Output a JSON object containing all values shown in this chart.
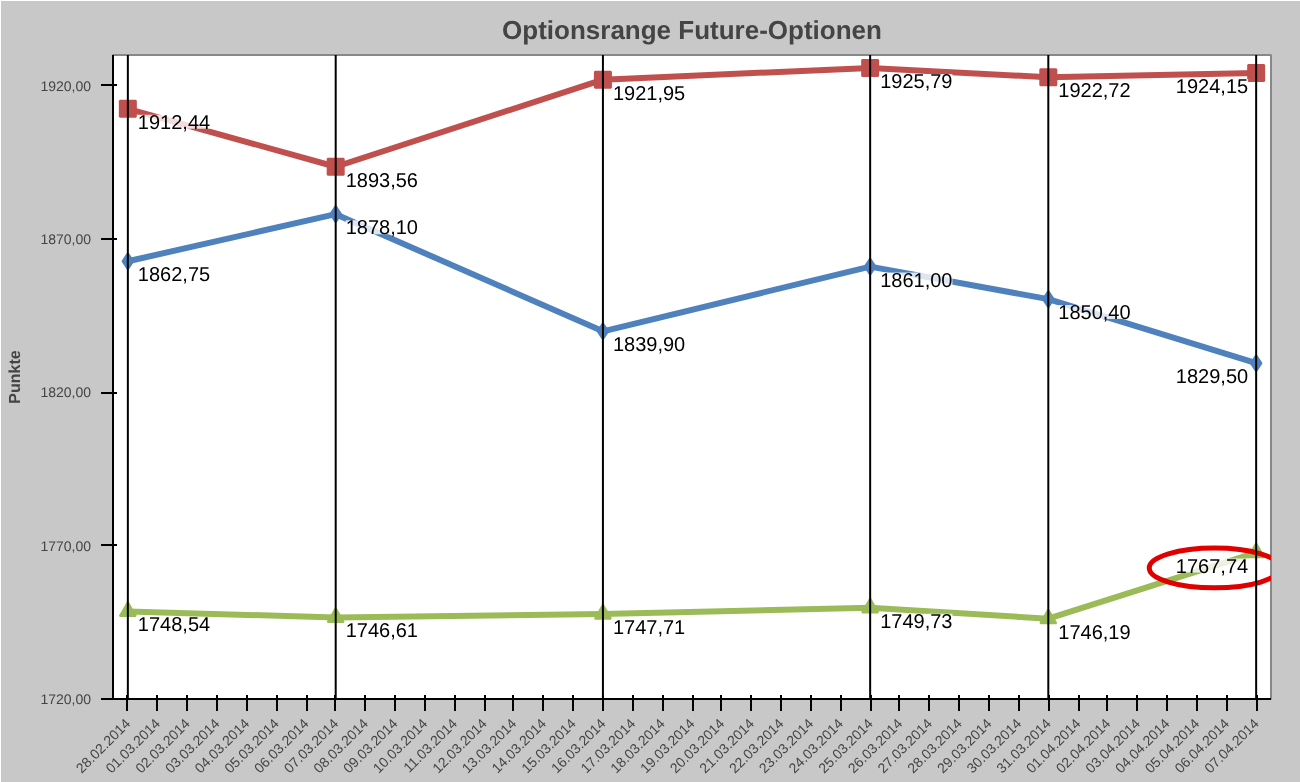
{
  "chart_data": {
    "type": "line",
    "title": "Optionsrange Future-Optionen",
    "ylabel": "Punkte",
    "categories": [
      "28.02.2014",
      "01.03.2014",
      "02.03.2014",
      "03.03.2014",
      "04.03.2014",
      "05.03.2014",
      "06.03.2014",
      "07.03.2014",
      "08.03.2014",
      "09.03.2014",
      "10.03.2014",
      "11.03.2014",
      "12.03.2014",
      "13.03.2014",
      "14.03.2014",
      "15.03.2014",
      "16.03.2014",
      "17.03.2014",
      "18.03.2014",
      "19.03.2014",
      "20.03.2014",
      "21.03.2014",
      "22.03.2014",
      "23.03.2014",
      "24.03.2014",
      "25.03.2014",
      "26.03.2014",
      "27.03.2014",
      "28.03.2014",
      "29.03.2014",
      "30.03.2014",
      "31.03.2014",
      "01.04.2014",
      "02.04.2014",
      "03.04.2014",
      "04.04.2014",
      "05.04.2014",
      "06.04.2014",
      "07.04.2014"
    ],
    "series": [
      {
        "color": "#c0504d",
        "marker": "square",
        "x": [
          "28.02.2014",
          "07.03.2014",
          "16.03.2014",
          "25.03.2014",
          "31.03.2014",
          "07.04.2014"
        ],
        "values": [
          1912.44,
          1893.56,
          1921.95,
          1925.79,
          1922.72,
          1924.15
        ],
        "value_labels": [
          "1912,44",
          "1893,56",
          "1921,95",
          "1925,79",
          "1922,72",
          "1924,15"
        ]
      },
      {
        "color": "#4f81bd",
        "marker": "diamond",
        "x": [
          "28.02.2014",
          "07.03.2014",
          "16.03.2014",
          "25.03.2014",
          "31.03.2014",
          "07.04.2014"
        ],
        "values": [
          1862.75,
          1878.1,
          1839.9,
          1861.0,
          1850.4,
          1829.5
        ],
        "value_labels": [
          "1862,75",
          "1878,10",
          "1839,90",
          "1861,00",
          "1850,40",
          "1829,50"
        ]
      },
      {
        "color": "#9bbb59",
        "marker": "triangle",
        "x": [
          "28.02.2014",
          "07.03.2014",
          "16.03.2014",
          "25.03.2014",
          "31.03.2014",
          "07.04.2014"
        ],
        "values": [
          1748.54,
          1746.61,
          1747.71,
          1749.73,
          1746.19,
          1767.74
        ],
        "value_labels": [
          "1748,54",
          "1746,61",
          "1747,71",
          "1749,73",
          "1746,19",
          "1767,74"
        ]
      }
    ],
    "ylim": [
      1720,
      1930
    ],
    "yticks": [
      {
        "value": 1720,
        "label": "1720,00"
      },
      {
        "value": 1770,
        "label": "1770,00"
      },
      {
        "value": 1820,
        "label": "1820,00"
      },
      {
        "value": 1870,
        "label": "1870,00"
      },
      {
        "value": 1920,
        "label": "1920,00"
      }
    ],
    "ref_lines": [
      {
        "axis": "x",
        "value": "28.02.2014",
        "color": "#000000"
      },
      {
        "axis": "x",
        "value": "07.03.2014",
        "color": "#000000"
      },
      {
        "axis": "x",
        "value": "16.03.2014",
        "color": "#000000"
      },
      {
        "axis": "x",
        "value": "25.03.2014",
        "color": "#000000"
      },
      {
        "axis": "x",
        "value": "31.03.2014",
        "color": "#000000"
      },
      {
        "axis": "x",
        "value": "07.04.2014",
        "color": "#000000"
      }
    ],
    "grid": false,
    "line_style": "solid"
  }
}
